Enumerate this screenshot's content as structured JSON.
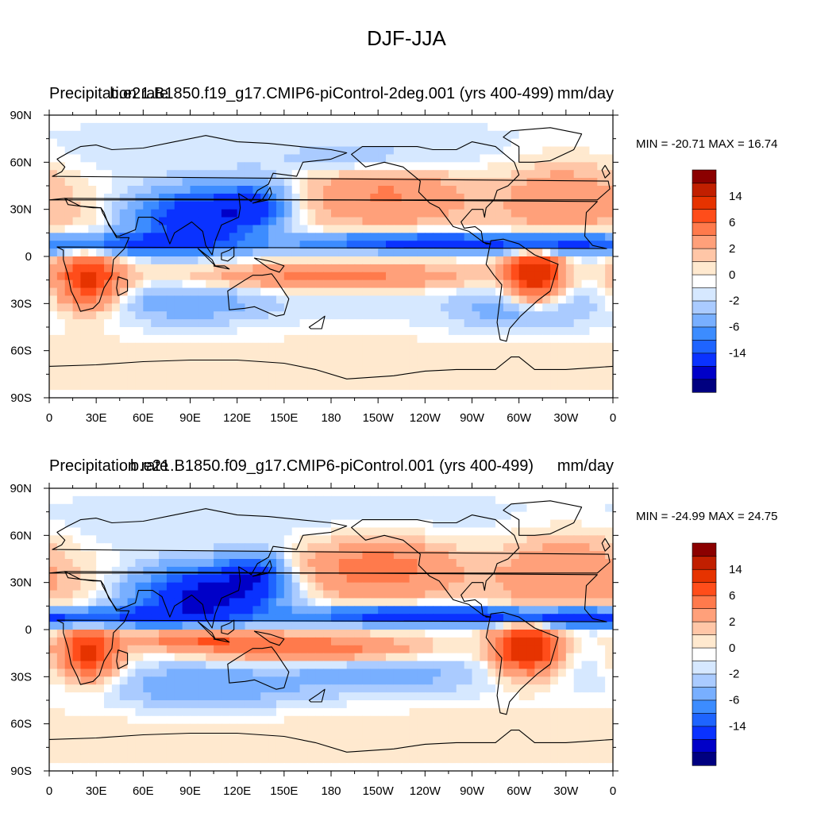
{
  "figure": {
    "title": "DJF-JJA"
  },
  "colorbar": {
    "fill_colors": [
      "#000080",
      "#0000c8",
      "#0a32ff",
      "#1e64ff",
      "#3c8cff",
      "#78afff",
      "#aacbff",
      "#d6e8ff",
      "#ffffff",
      "#ffe9cf",
      "#ffc6a7",
      "#ffa07a",
      "#ff7a4c",
      "#ff4d1a",
      "#e63300",
      "#c11f00",
      "#8b0000"
    ],
    "tick_labels": [
      "-14",
      "-6",
      "-2",
      "0",
      "2",
      "6",
      "14"
    ],
    "levels": [
      -20,
      -16,
      -14,
      -12,
      -10,
      -8,
      -6,
      -4,
      -2,
      -1,
      -0.5,
      0,
      0.5,
      1,
      2,
      4,
      6,
      8,
      10,
      12,
      14,
      16,
      20
    ]
  },
  "chart_data": [
    {
      "type": "contour-map",
      "left_title": "Precipitation rate",
      "center_title": "b.e21.B1850.f19_g17.CMIP6-piControl-2deg.001 (yrs 400-499)",
      "right_title": "mm/day",
      "min_max_text": "MIN = -20.71 MAX =  16.74",
      "min": -20.71,
      "max": 16.74,
      "x_ticks": [
        "0",
        "30E",
        "60E",
        "90E",
        "120E",
        "150E",
        "180",
        "150W",
        "120W",
        "90W",
        "60W",
        "30W",
        "0"
      ],
      "y_ticks": [
        "90N",
        "60N",
        "30N",
        "0",
        "30S",
        "60S",
        "90S"
      ],
      "lon_range": [
        0,
        360
      ],
      "lat_range": [
        -90,
        90
      ],
      "anomalies": [
        {
          "lon": 95,
          "lat": 25,
          "dlon": 28,
          "dlat": 12,
          "v": -12
        },
        {
          "lon": 130,
          "lat": 33,
          "dlon": 15,
          "dlat": 10,
          "v": -7
        },
        {
          "lon": 60,
          "lat": 8,
          "dlon": 35,
          "dlat": 5,
          "v": -8
        },
        {
          "lon": 240,
          "lat": 9,
          "dlon": 60,
          "dlat": 4,
          "v": -10
        },
        {
          "lon": 330,
          "lat": 8,
          "dlon": 30,
          "dlat": 5,
          "v": -7
        },
        {
          "lon": 25,
          "lat": -15,
          "dlon": 15,
          "dlat": 13,
          "v": 9
        },
        {
          "lon": 310,
          "lat": -12,
          "dlon": 12,
          "dlat": 12,
          "v": 11
        },
        {
          "lon": 180,
          "lat": -13,
          "dlon": 70,
          "dlat": 6,
          "v": 5
        },
        {
          "lon": 215,
          "lat": 40,
          "dlon": 35,
          "dlat": 13,
          "v": 4
        },
        {
          "lon": 330,
          "lat": 40,
          "dlon": 30,
          "dlat": 18,
          "v": 3
        },
        {
          "lon": 90,
          "lat": -30,
          "dlon": 35,
          "dlat": 10,
          "v": -2.5
        },
        {
          "lon": 300,
          "lat": -35,
          "dlon": 30,
          "dlat": 10,
          "v": -2.5
        },
        {
          "lon": 200,
          "lat": 62,
          "dlon": 35,
          "dlat": 6,
          "v": -1.5
        }
      ]
    },
    {
      "type": "contour-map",
      "left_title": "Precipitation rate",
      "center_title": "b.e21.B1850.f09_g17.CMIP6-piControl.001 (yrs 400-499)",
      "right_title": "mm/day",
      "min_max_text": "MIN = -24.99 MAX =  24.75",
      "min": -24.99,
      "max": 24.75,
      "x_ticks": [
        "0",
        "30E",
        "60E",
        "90E",
        "120E",
        "150E",
        "180",
        "150W",
        "120W",
        "90W",
        "60W",
        "30W",
        "0"
      ],
      "y_ticks": [
        "90N",
        "60N",
        "30N",
        "0",
        "30S",
        "60S",
        "90S"
      ],
      "lon_range": [
        0,
        360
      ],
      "lat_range": [
        -90,
        90
      ],
      "anomalies": [
        {
          "lon": 100,
          "lat": 22,
          "dlon": 30,
          "dlat": 12,
          "v": -14
        },
        {
          "lon": 130,
          "lat": 35,
          "dlon": 14,
          "dlat": 9,
          "v": -8
        },
        {
          "lon": 55,
          "lat": 8,
          "dlon": 35,
          "dlat": 5,
          "v": -7
        },
        {
          "lon": 245,
          "lat": 9,
          "dlon": 60,
          "dlat": 4,
          "v": -12
        },
        {
          "lon": 340,
          "lat": 7,
          "dlon": 30,
          "dlat": 4,
          "v": -8
        },
        {
          "lon": 25,
          "lat": -15,
          "dlon": 14,
          "dlat": 12,
          "v": 9
        },
        {
          "lon": 305,
          "lat": -12,
          "dlon": 14,
          "dlat": 12,
          "v": 11
        },
        {
          "lon": 95,
          "lat": -5,
          "dlon": 30,
          "dlat": 5,
          "v": 6
        },
        {
          "lon": 165,
          "lat": -12,
          "dlon": 50,
          "dlat": 6,
          "v": 6
        },
        {
          "lon": 210,
          "lat": 40,
          "dlon": 35,
          "dlat": 13,
          "v": 5
        },
        {
          "lon": 330,
          "lat": 38,
          "dlon": 30,
          "dlat": 18,
          "v": 3.5
        },
        {
          "lon": 100,
          "lat": -38,
          "dlon": 40,
          "dlat": 10,
          "v": -3
        },
        {
          "lon": 210,
          "lat": -30,
          "dlon": 40,
          "dlat": 8,
          "v": -2.5
        }
      ]
    }
  ]
}
